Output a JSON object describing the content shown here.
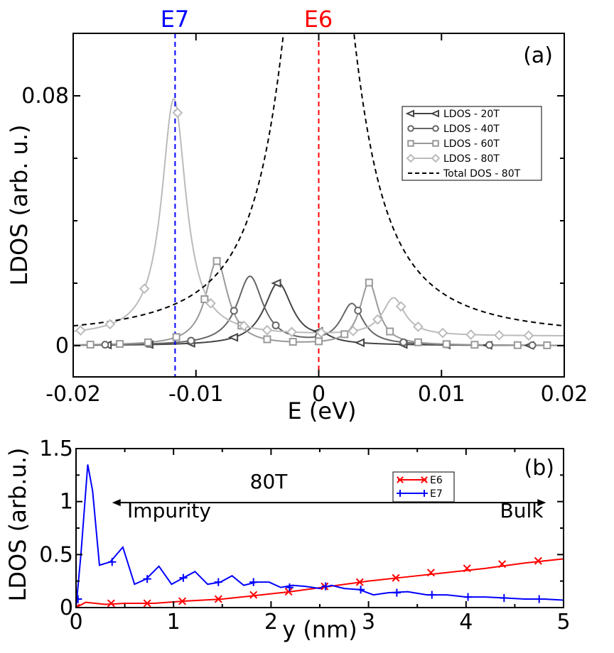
{
  "chart_data": [
    {
      "id": "a",
      "type": "line",
      "panel_label": "(a)",
      "xlabel": "E (eV)",
      "ylabel": "LDOS (arb. u.)",
      "xlim": [
        -0.02,
        0.02
      ],
      "ylim": [
        -0.01,
        0.1
      ],
      "xticks": [
        -0.02,
        -0.01,
        0,
        0.01,
        0.02
      ],
      "xtick_labels": [
        "-0.02",
        "-0.01",
        "0",
        "0.01",
        "0.02"
      ],
      "yticks": [
        0,
        0.08
      ],
      "ytick_labels": [
        "0",
        "0.08"
      ],
      "y_minor_ticks": [
        0.02,
        0.04,
        0.06
      ],
      "vlines": [
        {
          "label": "E7",
          "x": -0.0117,
          "color": "#0000ff"
        },
        {
          "label": "E6",
          "x": 0.0,
          "color": "#ff0000"
        }
      ],
      "legend_position": "upper-right",
      "series": [
        {
          "name": "LDOS - 20T",
          "marker": "triangle-left",
          "color": "#444444",
          "curve": {
            "type": "lorentz-sum",
            "baseline": 0.0,
            "peaks": [
              {
                "x0": -0.0033,
                "A": 0.02,
                "g": 0.0014
              },
              {
                "x0": 0.0003,
                "A": 0.0017,
                "g": 0.0009
              }
            ]
          },
          "markers_x": [
            -0.0172,
            -0.0138,
            -0.0104,
            -0.0069,
            -0.0034,
            0.0,
            0.0034,
            0.0069,
            0.0104,
            0.0138,
            0.0172
          ]
        },
        {
          "name": "LDOS - 40T",
          "marker": "circle",
          "color": "#666666",
          "curve": {
            "type": "lorentz-sum",
            "baseline": 0.0,
            "peaks": [
              {
                "x0": -0.0056,
                "A": 0.022,
                "g": 0.0013
              },
              {
                "x0": 0.0027,
                "A": 0.013,
                "g": 0.0011
              }
            ]
          },
          "markers_x": [
            -0.0174,
            -0.0139,
            -0.0104,
            -0.0069,
            -0.0035,
            0.0,
            0.0032,
            0.0069,
            0.0104,
            0.0139,
            0.0174
          ]
        },
        {
          "name": "LDOS - 60T",
          "marker": "square",
          "color": "#999999",
          "curve": {
            "type": "lorentz-sum",
            "baseline": 0.0,
            "peaks": [
              {
                "x0": -0.0083,
                "A": 0.027,
                "g": 0.0011
              },
              {
                "x0": 0.0041,
                "A": 0.02,
                "g": 0.0009
              }
            ]
          },
          "markers_x": [
            -0.0186,
            -0.0162,
            -0.0139,
            -0.0116,
            -0.0093,
            -0.0083,
            -0.0063,
            -0.0042,
            -0.0021,
            0.0,
            0.0021,
            0.0041,
            0.0058,
            0.0081,
            0.0104,
            0.0127,
            0.0162,
            0.0186
          ]
        },
        {
          "name": "LDOS - 80T",
          "marker": "diamond",
          "color": "#bbbbbb",
          "curve": {
            "type": "lorentz-sum",
            "baseline": 0.003,
            "peaks": [
              {
                "x0": -0.0118,
                "A": 0.076,
                "g": 0.0012
              },
              {
                "x0": 0.0061,
                "A": 0.012,
                "g": 0.0011
              }
            ]
          },
          "markers_x": [
            -0.0194,
            -0.017,
            -0.0142,
            -0.0115,
            -0.0088,
            -0.0061,
            -0.0042,
            -0.0022,
            0.0002,
            0.0028,
            0.0048,
            0.0067,
            0.0081,
            0.0101,
            0.0124,
            0.0147,
            0.0171
          ]
        },
        {
          "name": "Total DOS - 80T",
          "style": "dashed",
          "color": "#000000",
          "curve": {
            "type": "lorentz-sum",
            "baseline": 0.0025,
            "peaks": [
              {
                "x0": 0.0,
                "A": 0.2,
                "g": 0.0028
              }
            ]
          }
        }
      ]
    },
    {
      "id": "b",
      "type": "line",
      "panel_label": "(b)",
      "xlabel": "y (nm)",
      "ylabel": "LDOS (arb.u.)",
      "xlim": [
        0,
        5
      ],
      "ylim": [
        0,
        1.5
      ],
      "xticks": [
        0,
        1,
        2,
        3,
        4,
        5
      ],
      "xtick_labels": [
        "0",
        "1",
        "2",
        "3",
        "4",
        "5"
      ],
      "yticks": [
        0,
        0.5,
        1,
        1.5
      ],
      "ytick_labels": [
        "0",
        "0.5",
        "1",
        "1.5"
      ],
      "legend_position": "top-center-right",
      "annotations": {
        "field": "80T",
        "left_label": "Impurity",
        "right_label": "Bulk",
        "arrow_x": [
          0.37,
          4.82
        ],
        "arrow_y": 0.99
      },
      "series": [
        {
          "name": "E6",
          "marker": "x",
          "color": "#ff0000",
          "x": [
            0,
            0.1,
            0.3,
            0.5,
            0.8,
            1.1,
            1.5,
            1.8,
            2.2,
            2.6,
            3.0,
            3.4,
            3.8,
            4.2,
            4.6,
            5.0
          ],
          "y": [
            0.0,
            0.05,
            0.03,
            0.04,
            0.04,
            0.06,
            0.08,
            0.11,
            0.15,
            0.2,
            0.25,
            0.29,
            0.33,
            0.37,
            0.42,
            0.46
          ],
          "markers_x": [
            0.0,
            0.36,
            0.73,
            1.09,
            1.46,
            1.82,
            2.18,
            2.55,
            2.91,
            3.28,
            3.64,
            4.01,
            4.37,
            4.74
          ],
          "markers_y": [
            0.0,
            0.04,
            0.04,
            0.06,
            0.08,
            0.12,
            0.15,
            0.2,
            0.24,
            0.28,
            0.33,
            0.37,
            0.41,
            0.44
          ]
        },
        {
          "name": "E7",
          "marker": "plus",
          "color": "#0000ff",
          "x": [
            0,
            0.05,
            0.12,
            0.17,
            0.24,
            0.35,
            0.48,
            0.6,
            0.72,
            0.85,
            0.98,
            1.1,
            1.22,
            1.35,
            1.48,
            1.6,
            1.72,
            1.85,
            1.98,
            2.1,
            2.22,
            2.35,
            2.5,
            2.62,
            2.75,
            2.9,
            3.05,
            3.2,
            3.4,
            3.6,
            3.8,
            4.0,
            4.2,
            4.4,
            4.6,
            4.8,
            5.0
          ],
          "y": [
            0.0,
            0.5,
            1.35,
            1.1,
            0.4,
            0.43,
            0.57,
            0.22,
            0.27,
            0.39,
            0.22,
            0.28,
            0.34,
            0.22,
            0.24,
            0.3,
            0.21,
            0.24,
            0.24,
            0.19,
            0.21,
            0.2,
            0.18,
            0.21,
            0.18,
            0.17,
            0.12,
            0.14,
            0.15,
            0.12,
            0.12,
            0.1,
            0.1,
            0.09,
            0.08,
            0.08,
            0.07
          ],
          "markers_x": [
            0.02,
            0.37,
            0.73,
            1.1,
            1.46,
            1.82,
            2.19,
            2.56,
            2.92,
            3.29,
            3.65,
            4.02,
            4.39,
            4.75
          ],
          "markers_y": [
            0.08,
            0.43,
            0.27,
            0.28,
            0.24,
            0.24,
            0.19,
            0.2,
            0.17,
            0.14,
            0.12,
            0.1,
            0.09,
            0.08
          ]
        }
      ]
    }
  ]
}
